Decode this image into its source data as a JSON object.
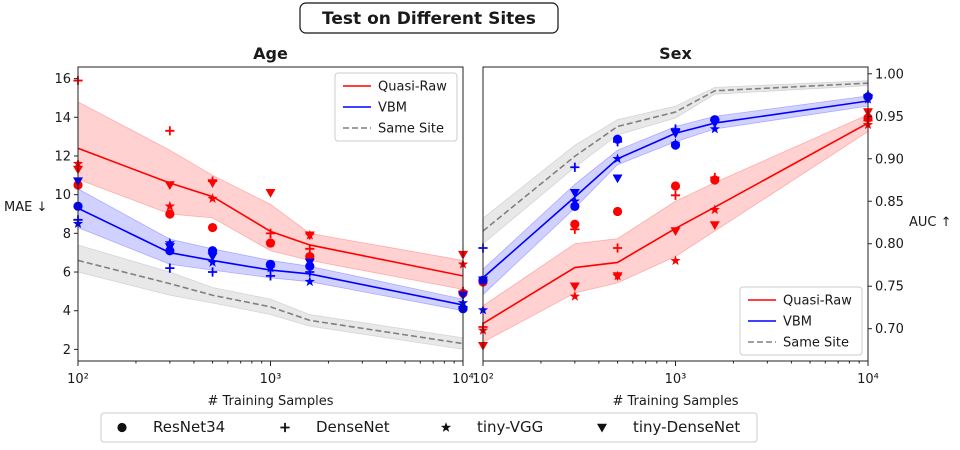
{
  "figure": {
    "suptitle": "Test on Different Sites",
    "common_legend": [
      {
        "label": "ResNet34",
        "marker": "circle"
      },
      {
        "label": "DenseNet",
        "marker": "plus"
      },
      {
        "label": "tiny-VGG",
        "marker": "star"
      },
      {
        "label": "tiny-DenseNet",
        "marker": "triangle-down"
      }
    ]
  },
  "colors": {
    "quasi_raw": "#ff0000",
    "vbm": "#0000ff",
    "same_site": "#808080",
    "quasi_raw_band": "#ff9999",
    "vbm_band": "#9999ff",
    "same_site_band": "#cccccc"
  },
  "chart_data": [
    {
      "type": "line",
      "title": "Age",
      "xlabel": "# Training Samples",
      "ylabel": "MAE ↓",
      "xscale": "log",
      "xlim": [
        100,
        10000
      ],
      "ylim": [
        1.4,
        16.6
      ],
      "yticks": [
        2,
        4,
        6,
        8,
        10,
        12,
        14,
        16
      ],
      "ytick_labels": [
        "2",
        "4",
        "6",
        "8",
        "10",
        "12",
        "14",
        "16"
      ],
      "xticks": [
        100,
        1000,
        10000
      ],
      "xtick_labels": [
        "10²",
        "10³",
        "10⁴"
      ],
      "legend_position": "upper-right",
      "legend": [
        "Quasi-Raw",
        "VBM",
        "Same Site"
      ],
      "x": [
        100,
        300,
        500,
        1000,
        1600,
        10000
      ],
      "series": [
        {
          "name": "Quasi-Raw",
          "color_key": "quasi_raw",
          "dash": false,
          "mean": [
            12.4,
            10.6,
            9.9,
            8.1,
            7.4,
            5.8
          ],
          "lower": [
            10.8,
            9.0,
            8.8,
            7.1,
            6.6,
            5.1
          ],
          "upper": [
            14.8,
            12.3,
            11.0,
            9.5,
            8.0,
            6.6
          ]
        },
        {
          "name": "VBM",
          "color_key": "vbm",
          "dash": false,
          "mean": [
            9.3,
            7.0,
            6.6,
            6.1,
            5.9,
            4.3
          ],
          "lower": [
            8.3,
            6.4,
            6.1,
            5.7,
            5.5,
            4.0
          ],
          "upper": [
            10.3,
            7.7,
            7.2,
            6.6,
            6.3,
            4.6
          ]
        },
        {
          "name": "Same Site",
          "color_key": "same_site",
          "dash": true,
          "mean": [
            6.6,
            5.4,
            4.8,
            4.2,
            3.5,
            2.3
          ],
          "lower": [
            6.0,
            4.8,
            4.4,
            3.8,
            3.2,
            2.0
          ],
          "upper": [
            7.4,
            6.0,
            5.2,
            4.6,
            3.8,
            2.6
          ]
        }
      ],
      "points": [
        {
          "model": "ResNet34",
          "marker": "circle",
          "color_key": "quasi_raw",
          "x": [
            100,
            300,
            500,
            1000,
            1600,
            10000
          ],
          "y": [
            10.5,
            9.0,
            8.3,
            7.5,
            6.8,
            4.9
          ]
        },
        {
          "model": "DenseNet",
          "marker": "plus",
          "color_key": "quasi_raw",
          "x": [
            100,
            300,
            500,
            1000,
            1600,
            10000
          ],
          "y": [
            15.9,
            13.3,
            10.7,
            8.0,
            7.2,
            5.0
          ]
        },
        {
          "model": "tiny-VGG",
          "marker": "star",
          "color_key": "quasi_raw",
          "x": [
            100,
            300,
            500,
            1000,
            1600,
            10000
          ],
          "y": [
            11.6,
            9.4,
            9.8,
            7.5,
            7.9,
            6.4
          ]
        },
        {
          "model": "tiny-DenseNet",
          "marker": "triangle-down",
          "color_key": "quasi_raw",
          "x": [
            100,
            300,
            500,
            1000,
            1600,
            10000
          ],
          "y": [
            11.3,
            10.5,
            10.6,
            10.1,
            7.9,
            6.9
          ]
        },
        {
          "model": "ResNet34",
          "marker": "circle",
          "color_key": "vbm",
          "x": [
            100,
            300,
            500,
            1000,
            1600,
            10000
          ],
          "y": [
            9.4,
            7.1,
            7.1,
            6.4,
            6.3,
            4.1
          ]
        },
        {
          "model": "DenseNet",
          "marker": "plus",
          "color_key": "vbm",
          "x": [
            100,
            300,
            500,
            1000,
            1600,
            10000
          ],
          "y": [
            8.7,
            6.2,
            6.0,
            5.8,
            6.0,
            4.2
          ]
        },
        {
          "model": "tiny-VGG",
          "marker": "star",
          "color_key": "vbm",
          "x": [
            100,
            300,
            500,
            1000,
            1600,
            10000
          ],
          "y": [
            8.5,
            7.5,
            6.5,
            6.2,
            5.5,
            4.4
          ]
        },
        {
          "model": "tiny-DenseNet",
          "marker": "triangle-down",
          "color_key": "vbm",
          "x": [
            100,
            300,
            500,
            1000,
            1600,
            10000
          ],
          "y": [
            10.7,
            7.3,
            6.8,
            6.2,
            6.5,
            4.8
          ]
        }
      ]
    },
    {
      "type": "line",
      "title": "Sex",
      "xlabel": "# Training Samples",
      "ylabel": "AUC ↑",
      "xscale": "log",
      "xlim": [
        100,
        10000
      ],
      "ylim": [
        0.662,
        1.008
      ],
      "yticks": [
        0.7,
        0.75,
        0.8,
        0.85,
        0.9,
        0.95,
        1.0
      ],
      "ytick_labels": [
        "0.70",
        "0.75",
        "0.80",
        "0.85",
        "0.90",
        "0.95",
        "1.00"
      ],
      "xticks": [
        100,
        1000,
        10000
      ],
      "xtick_labels": [
        "10²",
        "10³",
        "10⁴"
      ],
      "legend_position": "lower-right",
      "legend": [
        "Quasi-Raw",
        "VBM",
        "Same Site"
      ],
      "x": [
        100,
        300,
        500,
        1000,
        1600,
        10000
      ],
      "series": [
        {
          "name": "Quasi-Raw",
          "color_key": "quasi_raw",
          "dash": false,
          "mean": [
            0.706,
            0.772,
            0.778,
            0.818,
            0.843,
            0.942
          ],
          "lower": [
            0.684,
            0.742,
            0.754,
            0.785,
            0.815,
            0.932
          ],
          "upper": [
            0.727,
            0.8,
            0.806,
            0.85,
            0.872,
            0.952
          ]
        },
        {
          "name": "VBM",
          "color_key": "vbm",
          "dash": false,
          "mean": [
            0.76,
            0.855,
            0.9,
            0.93,
            0.942,
            0.968
          ],
          "lower": [
            0.74,
            0.842,
            0.893,
            0.92,
            0.935,
            0.962
          ],
          "upper": [
            0.77,
            0.87,
            0.91,
            0.938,
            0.95,
            0.974
          ]
        },
        {
          "name": "Same Site",
          "color_key": "same_site",
          "dash": true,
          "mean": [
            0.815,
            0.903,
            0.938,
            0.955,
            0.98,
            0.989
          ],
          "lower": [
            0.8,
            0.89,
            0.928,
            0.948,
            0.976,
            0.986
          ],
          "upper": [
            0.83,
            0.916,
            0.946,
            0.962,
            0.984,
            0.992
          ]
        }
      ],
      "points": [
        {
          "model": "ResNet34",
          "marker": "circle",
          "color_key": "quasi_raw",
          "x": [
            100,
            300,
            500,
            1000,
            1600,
            10000
          ],
          "y": [
            0.755,
            0.823,
            0.838,
            0.868,
            0.875,
            0.948
          ]
        },
        {
          "model": "DenseNet",
          "marker": "plus",
          "color_key": "quasi_raw",
          "x": [
            100,
            300,
            500,
            1000,
            1600,
            10000
          ],
          "y": [
            0.702,
            0.817,
            0.795,
            0.857,
            0.878,
            0.945
          ]
        },
        {
          "model": "tiny-VGG",
          "marker": "star",
          "color_key": "quasi_raw",
          "x": [
            100,
            300,
            500,
            1000,
            1600,
            10000
          ],
          "y": [
            0.698,
            0.738,
            0.762,
            0.78,
            0.84,
            0.94
          ]
        },
        {
          "model": "tiny-DenseNet",
          "marker": "triangle-down",
          "color_key": "quasi_raw",
          "x": [
            100,
            300,
            500,
            1000,
            1600,
            10000
          ],
          "y": [
            0.68,
            0.75,
            0.762,
            0.815,
            0.822,
            0.955
          ]
        },
        {
          "model": "ResNet34",
          "marker": "circle",
          "color_key": "vbm",
          "x": [
            100,
            300,
            500,
            1000,
            1600,
            10000
          ],
          "y": [
            0.757,
            0.844,
            0.923,
            0.916,
            0.946,
            0.973
          ]
        },
        {
          "model": "DenseNet",
          "marker": "plus",
          "color_key": "vbm",
          "x": [
            100,
            300,
            500,
            1000,
            1600,
            10000
          ],
          "y": [
            0.795,
            0.89,
            0.92,
            0.935,
            0.945,
            0.975
          ]
        },
        {
          "model": "tiny-VGG",
          "marker": "star",
          "color_key": "vbm",
          "x": [
            100,
            300,
            500,
            1000,
            1600,
            10000
          ],
          "y": [
            0.722,
            0.85,
            0.9,
            0.918,
            0.935,
            0.97
          ]
        },
        {
          "model": "tiny-DenseNet",
          "marker": "triangle-down",
          "color_key": "vbm",
          "x": [
            100,
            300,
            500,
            1000,
            1600,
            10000
          ],
          "y": [
            0.757,
            0.86,
            0.877,
            0.93,
            0.942,
            0.97
          ]
        }
      ]
    }
  ]
}
